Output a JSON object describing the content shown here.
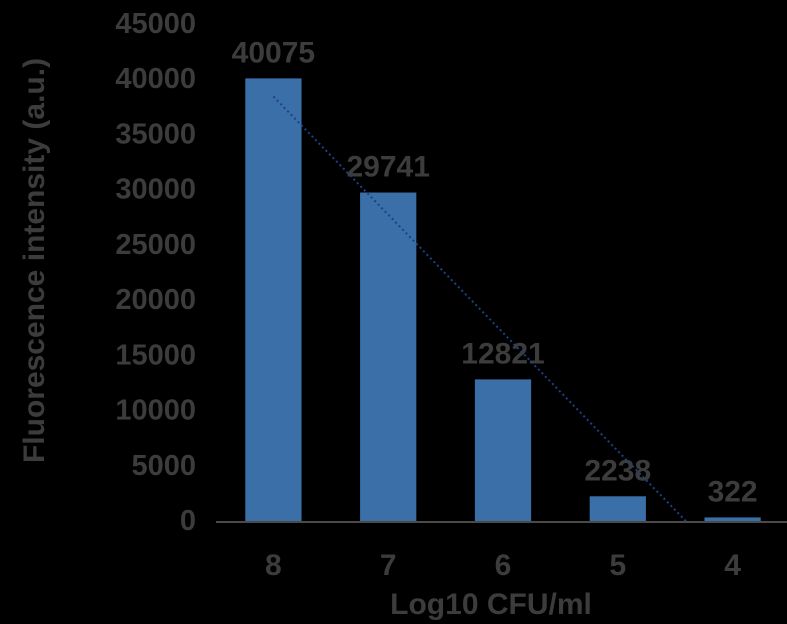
{
  "chart_data": {
    "type": "bar",
    "categories": [
      "8",
      "7",
      "6",
      "5",
      "4"
    ],
    "values": [
      40075,
      29741,
      12821,
      2238,
      322
    ],
    "data_labels": [
      "40075",
      "29741",
      "12821",
      "2238",
      "322"
    ],
    "title": "",
    "xlabel": "Log10 CFU/ml",
    "ylabel": "Fluorescence intensity (a.u.)",
    "ylim": [
      0,
      45000
    ],
    "yticks": [
      0,
      5000,
      10000,
      15000,
      20000,
      25000,
      30000,
      35000,
      40000,
      45000
    ],
    "ytick_labels": [
      "0",
      "5000",
      "10000",
      "15000",
      "20000",
      "25000",
      "30000",
      "35000",
      "40000",
      "45000"
    ],
    "grid": false,
    "legend": "none",
    "trendline": {
      "type": "linear",
      "style": "dotted"
    },
    "colors": {
      "bar": "#3b6fa8",
      "trendline": "#1f3f86",
      "text": "#3c3c3c",
      "axis": "#4a4a4a",
      "background": "#000000"
    }
  }
}
